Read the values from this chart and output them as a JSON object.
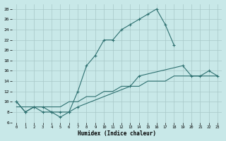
{
  "xlabel": "Humidex (Indice chaleur)",
  "background_color": "#c8e8e8",
  "grid_color": "#a8c8c8",
  "line_color": "#2e7070",
  "xlim": [
    -0.5,
    23.5
  ],
  "ylim": [
    6,
    29
  ],
  "yticks": [
    6,
    8,
    10,
    12,
    14,
    16,
    18,
    20,
    22,
    24,
    26,
    28
  ],
  "xticks": [
    0,
    1,
    2,
    3,
    4,
    5,
    6,
    7,
    8,
    9,
    10,
    11,
    12,
    13,
    14,
    15,
    16,
    17,
    18,
    19,
    20,
    21,
    22,
    23
  ],
  "line1_x": [
    0,
    1,
    2,
    3,
    4,
    5,
    6,
    7,
    8,
    9,
    10,
    11,
    12,
    13,
    14,
    15,
    16,
    17,
    18
  ],
  "line1_y": [
    10,
    8,
    9,
    9,
    8,
    8,
    8,
    12,
    17,
    19,
    22,
    22,
    24,
    25,
    26,
    27,
    28,
    25,
    21
  ],
  "line2_x": [
    0,
    1,
    2,
    3,
    4,
    5,
    6,
    7,
    13,
    14,
    19,
    20,
    21,
    22,
    23
  ],
  "line2_y": [
    10,
    8,
    9,
    8,
    8,
    7,
    8,
    9,
    13,
    15,
    17,
    15,
    15,
    16,
    15
  ],
  "line3_x": [
    0,
    1,
    2,
    3,
    4,
    5,
    6,
    7,
    8,
    9,
    10,
    11,
    12,
    13,
    14,
    15,
    16,
    17,
    18,
    19,
    20,
    21,
    22,
    23
  ],
  "line3_y": [
    9,
    9,
    9,
    9,
    9,
    9,
    10,
    10,
    11,
    11,
    12,
    12,
    13,
    13,
    13,
    14,
    14,
    14,
    15,
    15,
    15,
    15,
    15,
    15
  ]
}
